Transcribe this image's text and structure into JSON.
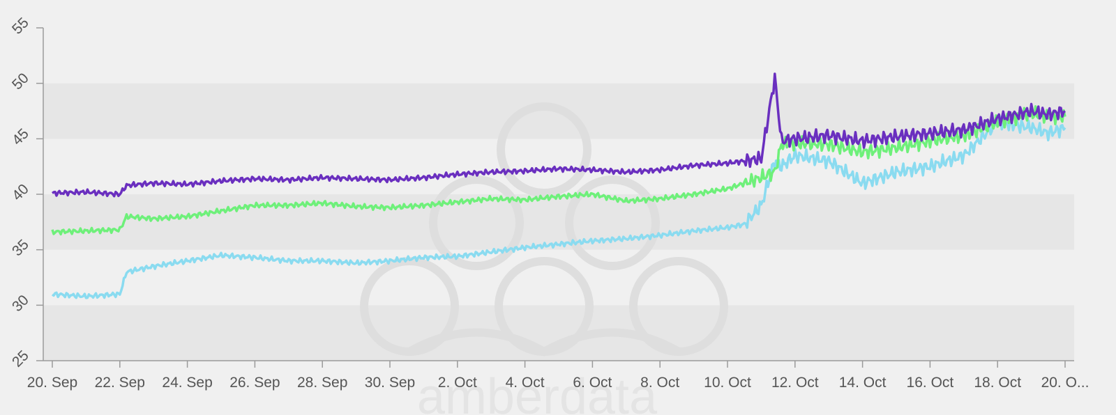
{
  "chart_data": {
    "type": "line",
    "title": "",
    "xlabel": "",
    "ylabel": "",
    "ylim": [
      25,
      55
    ],
    "y_ticks": [
      "25",
      "30",
      "35",
      "40",
      "45",
      "50",
      "55"
    ],
    "x_tick_labels": [
      "20. Sep",
      "22. Sep",
      "24. Sep",
      "26. Sep",
      "28. Sep",
      "30. Sep",
      "2. Oct",
      "4. Oct",
      "6. Oct",
      "8. Oct",
      "10. Oct",
      "12. Oct",
      "14. Oct",
      "16. Oct",
      "18. Oct",
      "20. O..."
    ],
    "x_range_days": [
      0,
      30
    ],
    "x": [
      0,
      1,
      2,
      2.2,
      3,
      4,
      5,
      6,
      7,
      8,
      9,
      10,
      11,
      12,
      13,
      14,
      15,
      16,
      17,
      18,
      19,
      20,
      20.5,
      21,
      21.4,
      21.6,
      22,
      23,
      24,
      25,
      26,
      27,
      28,
      29,
      29.5,
      30
    ],
    "series": [
      {
        "color": "#6a2fbf",
        "values": [
          40.1,
          40.2,
          40.0,
          40.8,
          41.0,
          40.9,
          41.2,
          41.4,
          41.3,
          41.5,
          41.4,
          41.3,
          41.5,
          41.8,
          42.0,
          42.1,
          42.3,
          42.2,
          42.0,
          42.2,
          42.6,
          42.8,
          43.0,
          43.2,
          50.5,
          44.8,
          45.0,
          45.3,
          44.8,
          45.2,
          45.5,
          45.8,
          46.8,
          47.5,
          47.2,
          47.5
        ]
      },
      {
        "color": "#6ef07a",
        "values": [
          36.6,
          36.7,
          36.8,
          38.0,
          37.8,
          38.0,
          38.5,
          39.0,
          39.0,
          39.2,
          38.9,
          38.8,
          39.0,
          39.3,
          39.6,
          39.5,
          39.8,
          40.0,
          39.4,
          39.6,
          40.0,
          40.5,
          41.0,
          41.5,
          42.0,
          44.5,
          44.6,
          44.5,
          43.8,
          44.2,
          44.8,
          45.3,
          46.5,
          47.3,
          47.0,
          47.0
        ]
      },
      {
        "color": "#8adbf0",
        "values": [
          31.0,
          30.8,
          31.0,
          33.0,
          33.5,
          34.0,
          34.5,
          34.3,
          34.0,
          34.0,
          33.8,
          34.0,
          34.3,
          34.4,
          34.8,
          35.2,
          35.5,
          35.8,
          36.0,
          36.3,
          36.7,
          37.0,
          37.3,
          39.0,
          43.0,
          42.5,
          43.5,
          43.0,
          41.0,
          42.0,
          42.5,
          43.5,
          46.5,
          46.0,
          45.5,
          46.0
        ]
      }
    ],
    "grid": "alternating horizontal bands",
    "legend": "none"
  },
  "watermark": {
    "text": "amberdata"
  }
}
